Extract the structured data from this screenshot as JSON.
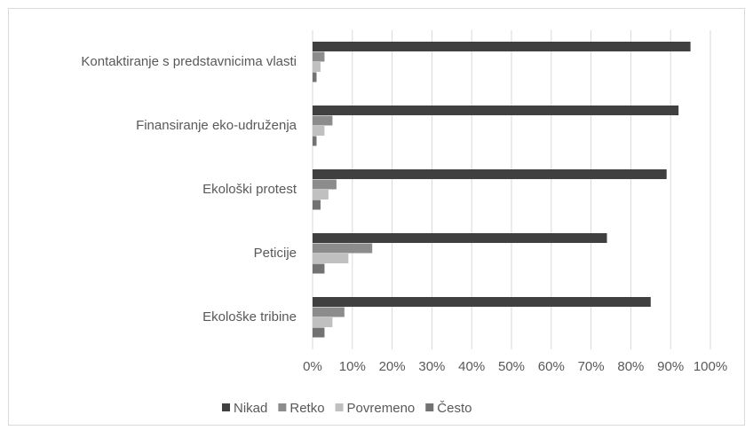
{
  "chart_data": {
    "type": "bar",
    "orientation": "horizontal",
    "categories": [
      "Kontaktiranje s predstavnicima vlasti",
      "Finansiranje eko-udruženja",
      "Ekološki protest",
      "Peticije",
      "Ekološke tribine"
    ],
    "series": [
      {
        "name": "Nikad",
        "color": "#404040",
        "values": [
          95,
          92,
          89,
          74,
          85
        ]
      },
      {
        "name": "Retko",
        "color": "#8c8c8c",
        "values": [
          3,
          5,
          6,
          15,
          8
        ]
      },
      {
        "name": "Povremeno",
        "color": "#c0c0c0",
        "values": [
          2,
          3,
          4,
          9,
          5
        ]
      },
      {
        "name": "Često",
        "color": "#727272",
        "values": [
          1,
          1,
          2,
          3,
          3
        ]
      }
    ],
    "xlim": [
      0,
      100
    ],
    "xticks": [
      {
        "value": 0,
        "label": "0%"
      },
      {
        "value": 10,
        "label": "10%"
      },
      {
        "value": 20,
        "label": "20%"
      },
      {
        "value": 30,
        "label": "30%"
      },
      {
        "value": 40,
        "label": "40%"
      },
      {
        "value": 50,
        "label": "50%"
      },
      {
        "value": 60,
        "label": "60%"
      },
      {
        "value": 70,
        "label": "70%"
      },
      {
        "value": 80,
        "label": "80%"
      },
      {
        "value": 90,
        "label": "90%"
      },
      {
        "value": 100,
        "label": "100%"
      }
    ],
    "grid": true,
    "legend": "bottom"
  }
}
